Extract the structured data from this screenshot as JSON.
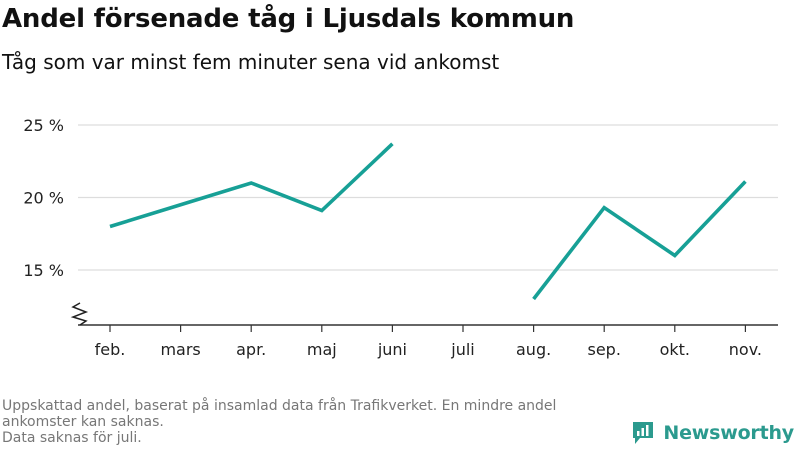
{
  "title": "Andel försenade tåg i Ljusdals kommun",
  "subtitle": "Tåg som var minst fem minuter sena vid ankomst",
  "footnote_lines": [
    "Uppskattad andel, baserat på insamlad data från Trafikverket. En mindre andel",
    "ankomster kan saknas.",
    "Data saknas för juli."
  ],
  "brand": {
    "name": "Newsworthy",
    "icon": "newsworthy-logo-icon",
    "color": "#2b9a8e"
  },
  "colors": {
    "line": "#17a096",
    "grid": "#dddddd",
    "axis": "#333333"
  },
  "chart_data": {
    "type": "line",
    "categories": [
      "feb.",
      "mars",
      "apr.",
      "maj",
      "juni",
      "juli",
      "aug.",
      "sep.",
      "okt.",
      "nov."
    ],
    "series": [
      {
        "values": [
          18,
          19.5,
          21,
          19.1,
          23.7,
          null,
          13,
          19.3,
          16,
          21.1
        ]
      }
    ],
    "yticks": [
      15,
      20,
      25
    ],
    "ytick_labels": [
      "15 %",
      "20 %",
      "25 %"
    ],
    "ylim": [
      11,
      26
    ],
    "y_axis_break": true,
    "grid": true,
    "xlabel": "",
    "ylabel": ""
  }
}
